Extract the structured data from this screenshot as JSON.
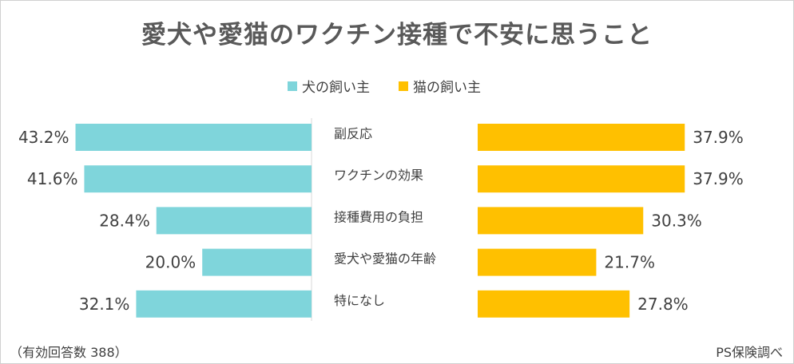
{
  "title": "愛犬や愛猫のワクチン接種で不安に思うこと",
  "colors": {
    "dog": "#7fd5db",
    "cat": "#ffc000",
    "divider": "#d9d9d9"
  },
  "chart_data": {
    "type": "bar",
    "categories": [
      "副反応",
      "ワクチンの効果",
      "接種費用の負担",
      "愛犬や愛猫の年齢",
      "特になし"
    ],
    "series": [
      {
        "name": "犬の飼い主",
        "values": [
          43.2,
          41.6,
          28.4,
          20.0,
          32.1
        ],
        "labels": [
          "43.2%",
          "41.6%",
          "28.4%",
          "20.0%",
          "32.1%"
        ]
      },
      {
        "name": "猫の飼い主",
        "values": [
          37.9,
          37.9,
          30.3,
          21.7,
          27.8
        ],
        "labels": [
          "37.9%",
          "37.9%",
          "30.3%",
          "21.7%",
          "27.8%"
        ]
      }
    ],
    "unit": "%",
    "legend_position": "top-center",
    "grid": false
  },
  "footer": {
    "note": "（有効回答数 388）",
    "source": "PS保険調べ"
  }
}
